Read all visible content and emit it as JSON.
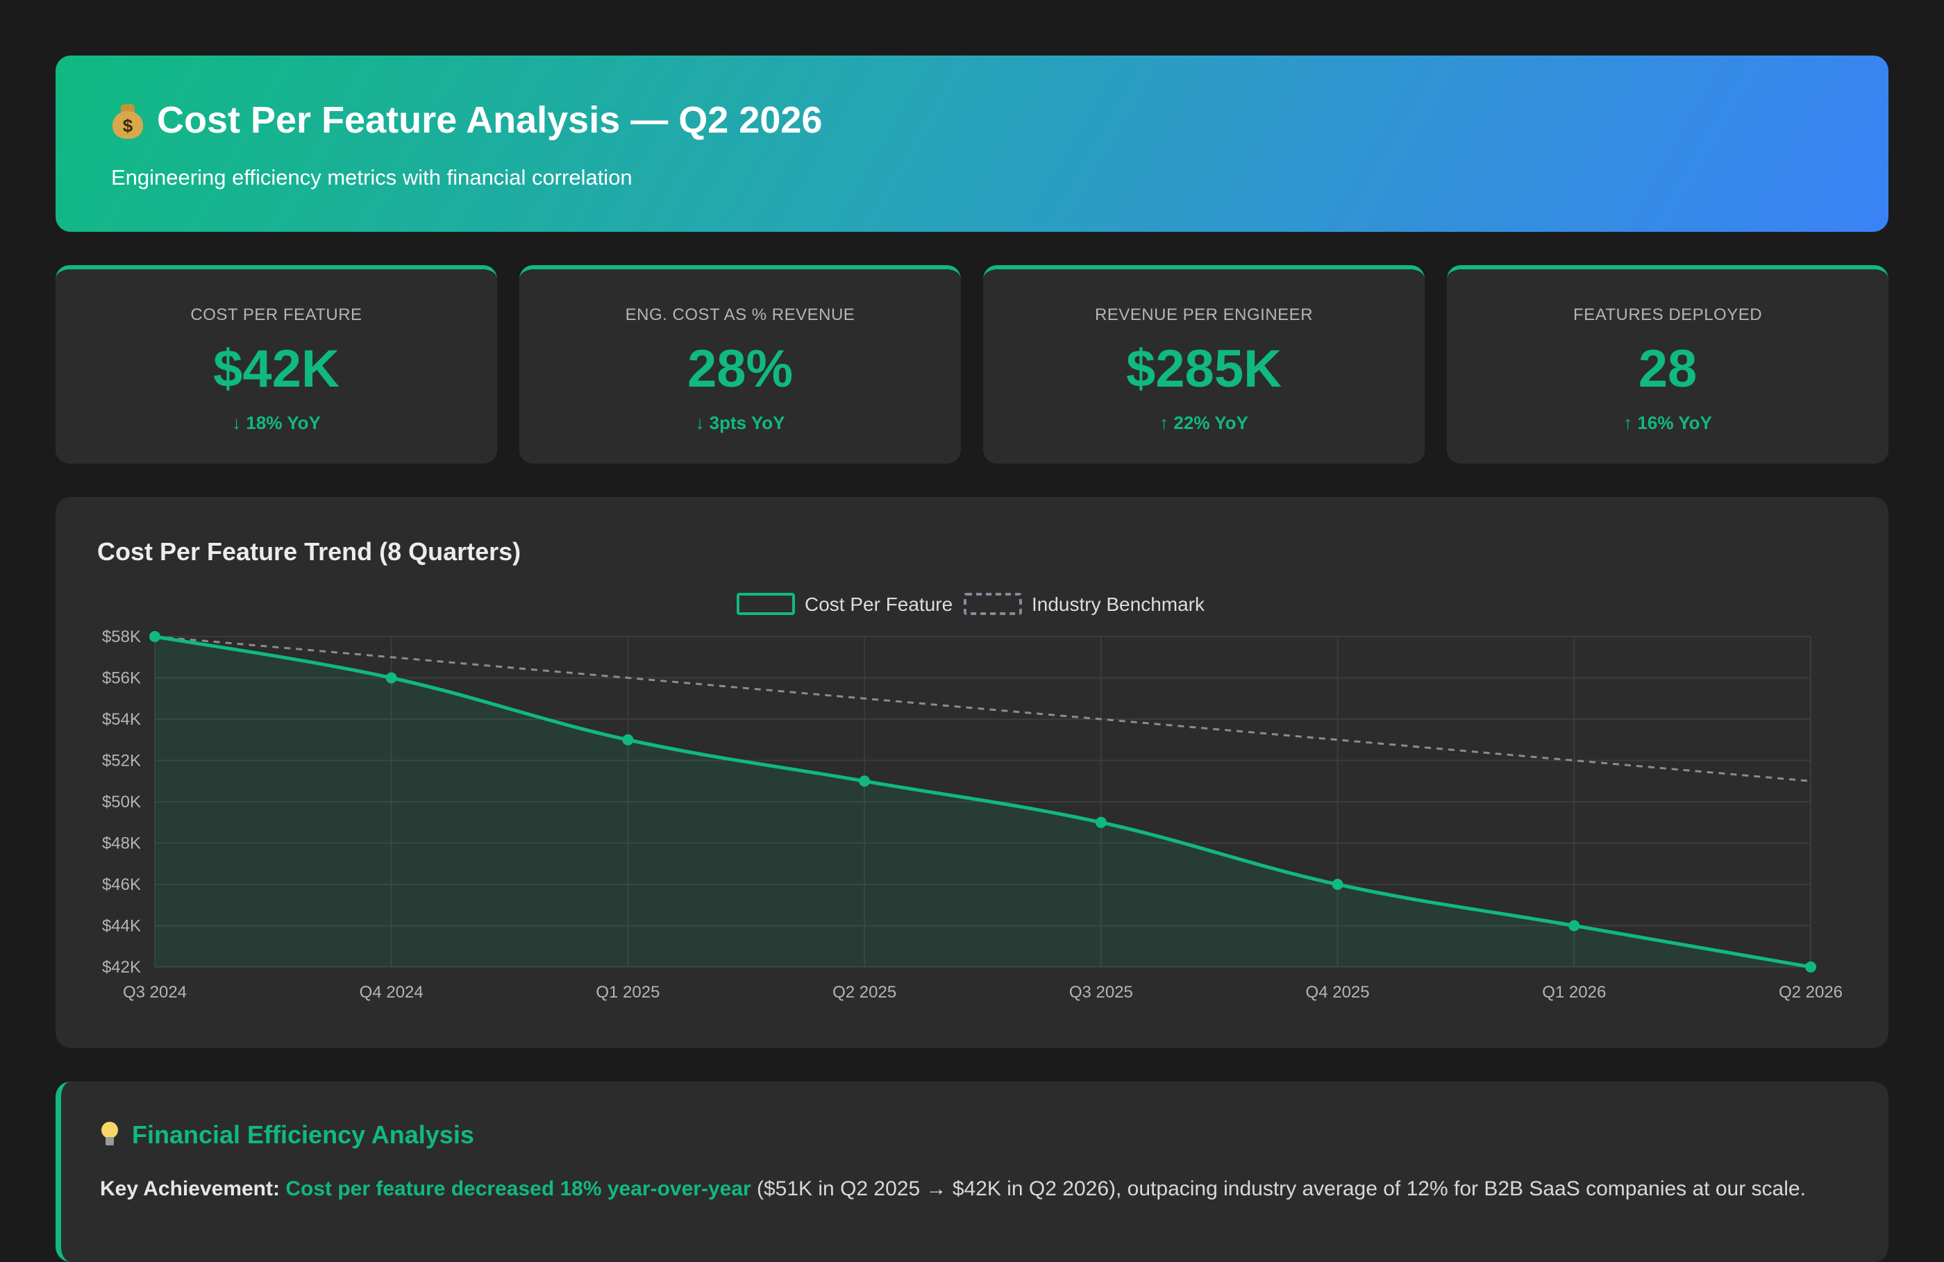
{
  "header": {
    "icon": "money-bag-icon",
    "title": "Cost Per Feature Analysis — Q2 2026",
    "subtitle": "Engineering efficiency metrics with financial correlation"
  },
  "colors": {
    "accent": "#10b981",
    "benchmark": "#8a8a9a",
    "header_gradient_start": "#10b981",
    "header_gradient_end": "#3b82f6"
  },
  "kpis": [
    {
      "label": "COST PER FEATURE",
      "value": "$42K",
      "change": "↓ 18% YoY"
    },
    {
      "label": "ENG. COST AS % REVENUE",
      "value": "28%",
      "change": "↓ 3pts YoY"
    },
    {
      "label": "REVENUE PER ENGINEER",
      "value": "$285K",
      "change": "↑ 22% YoY"
    },
    {
      "label": "FEATURES DEPLOYED",
      "value": "28",
      "change": "↑ 16% YoY"
    }
  ],
  "chart_data": {
    "type": "line",
    "title": "Cost Per Feature Trend (8 Quarters)",
    "categories": [
      "Q3 2024",
      "Q4 2024",
      "Q1 2025",
      "Q2 2025",
      "Q3 2025",
      "Q4 2025",
      "Q1 2026",
      "Q2 2026"
    ],
    "series": [
      {
        "name": "Cost Per Feature",
        "values": [
          58,
          56,
          53,
          51,
          49,
          46,
          44,
          42
        ],
        "style": "solid",
        "filled": true,
        "color": "#10b981"
      },
      {
        "name": "Industry Benchmark",
        "values": [
          58,
          57,
          56,
          55,
          54,
          53,
          52,
          51
        ],
        "style": "dashed",
        "filled": false,
        "color": "#8a8a9a"
      }
    ],
    "y_ticks": [
      "$58K",
      "$56K",
      "$54K",
      "$52K",
      "$50K",
      "$48K",
      "$46K",
      "$44K",
      "$42K"
    ],
    "ylim": [
      42,
      58
    ],
    "legend": "top-center",
    "grid": true
  },
  "analysis": {
    "icon": "lightbulb-icon",
    "title": "Financial Efficiency Analysis",
    "lead": "Key Achievement:",
    "highlight": "Cost per feature decreased 18% year-over-year",
    "body": " ($51K in Q2 2025 → $42K in Q2 2026), outpacing industry average of 12% for B2B SaaS companies at our scale."
  }
}
